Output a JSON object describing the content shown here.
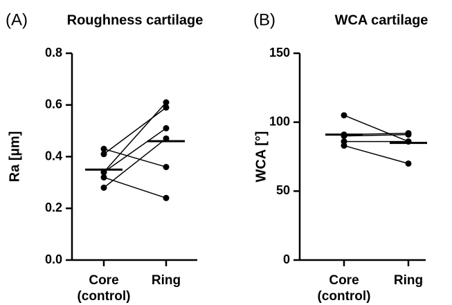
{
  "chart_data": [
    {
      "type": "paired_dot",
      "panel_label": "(A)",
      "title": "Roughness cartilage",
      "ylabel": "Ra [µm]",
      "categories": [
        "Core (control)",
        "Ring"
      ],
      "points": [
        [
          0.43,
          0.41,
          0.34,
          0.34,
          0.32,
          0.28
        ],
        [
          0.36,
          0.59,
          0.61,
          0.51,
          0.24,
          0.47
        ]
      ],
      "means": [
        0.35,
        0.46
      ],
      "color": "#000000",
      "ylim": [
        0,
        0.8
      ],
      "yticks": [
        {
          "value": 0,
          "label": "0.0"
        },
        0.2,
        0.4,
        0.6,
        0.8
      ]
    },
    {
      "type": "paired_dot",
      "panel_label": "(B)",
      "title": "WCA cartilage",
      "ylabel": "WCA [°]",
      "categories": [
        "Core (control)",
        "Ring"
      ],
      "points": [
        [
          105,
          91,
          90,
          86,
          83
        ],
        [
          86,
          92,
          91,
          86,
          70
        ]
      ],
      "means": [
        91,
        85
      ],
      "color": "#000000",
      "ylim": [
        0,
        150
      ],
      "yticks": [
        0,
        50,
        100,
        150
      ]
    }
  ]
}
